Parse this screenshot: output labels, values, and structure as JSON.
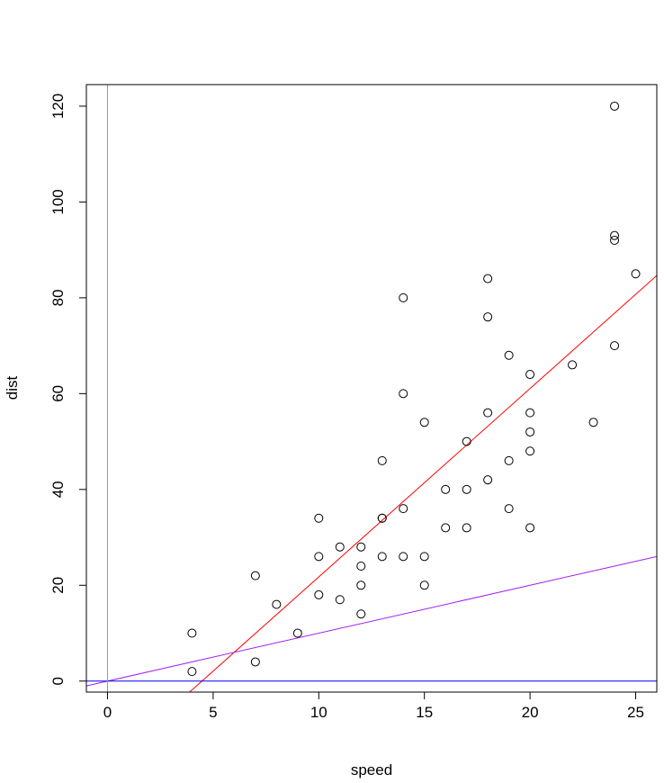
{
  "chart_data": {
    "type": "scatter",
    "title": "",
    "xlabel": "speed",
    "ylabel": "dist",
    "xlim": [
      -1,
      26
    ],
    "ylim": [
      -2.3,
      124.5
    ],
    "xticks": [
      0,
      5,
      10,
      15,
      20,
      25
    ],
    "yticks": [
      0,
      20,
      40,
      60,
      80,
      100,
      120
    ],
    "grid": false,
    "legend": "none",
    "series": [
      {
        "x": [
          4,
          4,
          7,
          7,
          8,
          9,
          10,
          10,
          10,
          11,
          11,
          12,
          12,
          12,
          12,
          13,
          13,
          13,
          13,
          14,
          14,
          14,
          14,
          15,
          15,
          15,
          16,
          16,
          17,
          17,
          17,
          18,
          18,
          18,
          18,
          19,
          19,
          19,
          20,
          20,
          20,
          20,
          20,
          22,
          23,
          24,
          24,
          24,
          24,
          25
        ],
        "y": [
          2,
          10,
          4,
          22,
          16,
          10,
          18,
          26,
          34,
          17,
          28,
          14,
          20,
          24,
          28,
          26,
          34,
          34,
          46,
          26,
          36,
          60,
          80,
          20,
          26,
          54,
          32,
          40,
          32,
          40,
          50,
          42,
          56,
          76,
          84,
          36,
          46,
          68,
          32,
          48,
          52,
          56,
          64,
          66,
          54,
          70,
          92,
          93,
          120,
          85
        ],
        "marker": "open-circle",
        "color": "#000000"
      }
    ],
    "lines": [
      {
        "kind": "abline",
        "intercept": -17.579,
        "slope": 3.932,
        "color": "#ff0000"
      },
      {
        "kind": "abline",
        "intercept": 0,
        "slope": 1,
        "color": "#a020f0"
      },
      {
        "kind": "hline",
        "y": 0,
        "color": "#0000ff"
      },
      {
        "kind": "vline",
        "x": 0,
        "color": "#00ff00"
      }
    ]
  }
}
